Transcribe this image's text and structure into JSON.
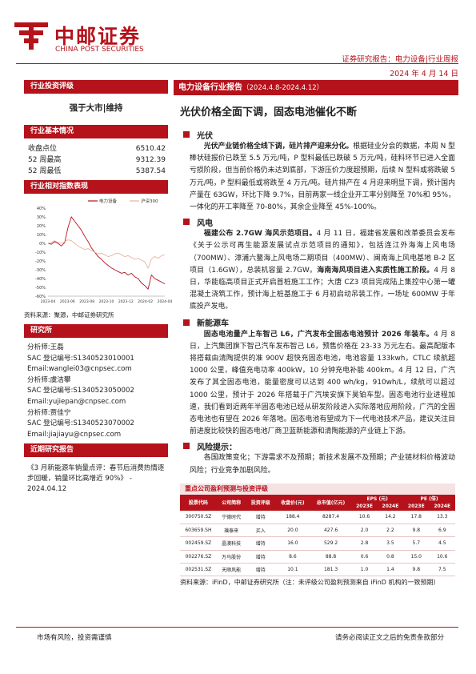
{
  "brand": {
    "name_cn": "中邮证券",
    "name_en": "CHINA POST SECURITIES"
  },
  "header": {
    "report_type": "证券研究报告：电力设备|行业周报",
    "date": "2024 年 4 月 14 日"
  },
  "sidebar": {
    "rating_head": "行业投资评级",
    "rating": "强于大市|维持",
    "basic_head": "行业基本情况",
    "stats": [
      {
        "label": "收盘点位",
        "value": "6510.42"
      },
      {
        "label": "52 周最高",
        "value": "9312.39"
      },
      {
        "label": "52 周最低",
        "value": "5387.54"
      }
    ],
    "index_head": "行业相对指数表现",
    "chart_source": "资料来源：聚源，中邮证券研究所",
    "research_head": "研究所",
    "analysts": [
      "分析师:王磊",
      "SAC 登记编号:S1340523010001",
      "Email:wanglei03@cnpsec.com",
      "分析师:虞洁攀",
      "SAC 登记编号:S1340523050002",
      "Email:yujiepan@cnpsec.com",
      "分析师:贾佳宁",
      "SAC 登记编号:S1340523070002",
      "Email:jiajiayu@cnpsec.com"
    ],
    "recent_head": "近期研究报告",
    "recent_item": "《3 月新能源车销量点评：春节后消费热情逐步回暖，销量环比高增近 90%》 - 2024.04.12"
  },
  "chart_data": {
    "type": "line",
    "series": [
      {
        "name": "电力设备",
        "color": "#b5121b",
        "values": [
          0,
          -1,
          2,
          0,
          -3,
          1,
          18,
          30,
          25,
          20,
          15,
          8,
          2,
          -5,
          -10,
          -15,
          -18,
          -22,
          -25,
          -28,
          -30,
          -32,
          -34,
          -33,
          -36,
          -34,
          -38,
          -40,
          -45,
          -48,
          -52,
          -36,
          -40,
          -42,
          -44,
          -46
        ]
      },
      {
        "name": "沪深300",
        "color": "#e8b2a0",
        "values": [
          0,
          1,
          3,
          1,
          0,
          2,
          4,
          3,
          0,
          -3,
          -5,
          -7,
          -6,
          -8,
          -10,
          -12,
          -11,
          -13,
          -15,
          -14,
          -12,
          -11,
          -13,
          -15,
          -14,
          -16,
          -18,
          -17,
          -19,
          -21,
          -28,
          -18,
          -15,
          -17,
          -14,
          -13
        ]
      }
    ],
    "x_ticks": [
      "2023-04",
      "2023-06",
      "2023-08",
      "2023-10",
      "2023-12",
      "2024-02",
      "2024-04"
    ],
    "y_ticks": [
      "40%",
      "30%",
      "20%",
      "10%",
      "0%",
      "-10%",
      "-20%",
      "-30%",
      "-40%",
      "-50%",
      "-60%"
    ],
    "ylim": [
      -60,
      40
    ]
  },
  "main": {
    "report_title": "电力设备行业报告",
    "report_period": "（2024.4.8-2024.4.12）",
    "headline": "光伏价格全面下调，固态电池催化不断",
    "sections": [
      {
        "title": "光伏",
        "bold_lead": "光伏产业链价格全线下调，硅片排产迎来分化。",
        "text": "根据硅业分会的数据，本周 N 型棒状硅报价已跌至 5.5 万元/吨，P 型料最低已跌破 5 万元/吨，硅料环节已进入全面亏损阶段，但当前价格仍未达到底部，下游压价力度超预期，后续 N 型料或将跌破 5 万元/吨，P 型料最低或将跌至 4 万元/吨。硅片排产在 4 月迎来明显下调，预计国内产量在 63GW，环比下降 9.7%，目前两家一线企业开工率分别降至 70%和 95%，一体化的开工率降至 70-80%，其余企业降至 45%-100%。"
      },
      {
        "title": "风电",
        "bold_lead": "福建公布 2.7GW 海风示范项目。",
        "text": "4 月 11 日，福建省发展和改革委员会发布《关于公示可再生能源发展试点示范项目的通知》，包括连江外海海上风电场（700MW）、漳浦六鳌海上风电场二期项目（400MW）、闽南海上风电基地 B-2 区项目（1.6GW），总装机容量 2.7GW。",
        "bold_mid": "海南海风项目进入实质性施工阶段。",
        "text2": "4 月 8 日，华能临高项目正式开启首桩施工工作；大唐 CZ3 项目完成陆上集控中心第一罐混凝土浇筑工作，预计海上桩基施工于 6 月初启动吊装工作，一场址 600MW 于年底投产发电。"
      },
      {
        "title": "新能源车",
        "bold_lead": "固态电池量产上车智己 L6，广汽发布全固态电池预计 2026 年装车。",
        "text": "4 月 8 日，上汽集团旗下智己汽车发布智己 L6，预售价格在 23-33 万元左右。最高配版本将搭载由清陶提供的准 900V 超快充固态电池，电池容量 133kwh，CTLC 续航超 1000 公里，峰值充电功率 400kW，10 分钟充电补能 400km。4 月 12 日，广汽发布了其全固态电池，能量密度可以达到 400 wh/kg，910wh/L，续航可以超过 1000 公里，预计于 2026 年搭载于广汽埃安旗下昊铂车型。固态电池行业进程加速，我们看到近两年半固态电池已经从研发阶段进入实际落地应用阶段，广汽的全固态电池也有望在 2026 年落地。固态电池有望成为下一代电池技术产品，建议关注目前进度比较快的固态电池厂商卫蓝新能源和清陶能源的产业链上下游。"
      },
      {
        "title": "风险提示：",
        "text": "各国政策变化；下游需求不及预期；新技术发展不及预期；产业链材料价格波动风险；行业竞争加剧风险。"
      }
    ],
    "table": {
      "title": "重点公司盈利预测与投资评级",
      "headers": [
        "股票代码",
        "公司简称",
        "投资评级",
        "收盘价(元)",
        "总市值(亿元)",
        "EPS (元)",
        "PE (倍)"
      ],
      "sub_headers": [
        "2023E",
        "2024E",
        "2023E",
        "2024E"
      ],
      "rows": [
        [
          "300750.SZ",
          "宁德时代",
          "增持",
          "188.4",
          "8287.4",
          "10.6",
          "14.2",
          "17.8",
          "13.3"
        ],
        [
          "603659.SH",
          "璞泰来",
          "买入",
          "20.0",
          "427.6",
          "2.0",
          "2.2",
          "9.8",
          "6.9"
        ],
        [
          "002459.SZ",
          "晶澳科技",
          "增持",
          "16.0",
          "529.2",
          "2.8",
          "3.5",
          "5.7",
          "4.5"
        ],
        [
          "002276.SZ",
          "万马股份",
          "增持",
          "8.6",
          "88.8",
          "0.6",
          "0.8",
          "15.0",
          "10.6"
        ],
        [
          "002531.SZ",
          "天顺风能",
          "增持",
          "10.1",
          "181.3",
          "1.0",
          "1.4",
          "9.8",
          "7.5"
        ]
      ],
      "source": "资料来源：iFinD，中邮证券研究所（注：未评级公司盈利预测来自 iFinD 机构的一致预期）"
    }
  },
  "footer": {
    "left": "市场有风险，投资需谨慎",
    "right": "请务必阅读正文之后的免责条款部分"
  }
}
